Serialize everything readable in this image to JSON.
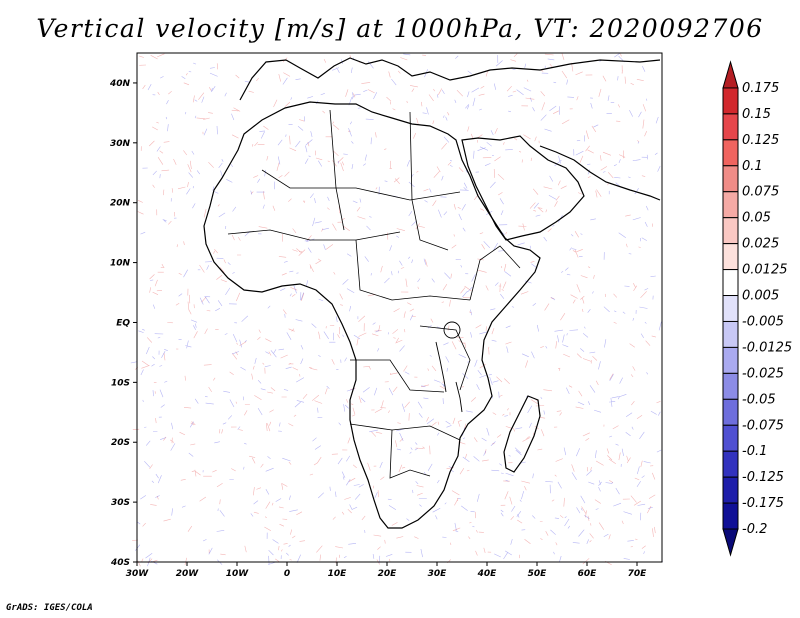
{
  "title": "Vertical velocity [m/s] at 1000hPa, VT: 2020092706",
  "footer": "GrADS: IGES/COLA",
  "map": {
    "lon_range": [
      -30,
      75
    ],
    "lat_range": [
      -40,
      45
    ],
    "lat_ticks": [
      {
        "value": 40,
        "label": "40N"
      },
      {
        "value": 30,
        "label": "30N"
      },
      {
        "value": 20,
        "label": "20N"
      },
      {
        "value": 10,
        "label": "10N"
      },
      {
        "value": 0,
        "label": "EQ"
      },
      {
        "value": -10,
        "label": "10S"
      },
      {
        "value": -20,
        "label": "20S"
      },
      {
        "value": -30,
        "label": "30S"
      },
      {
        "value": -40,
        "label": "40S"
      }
    ],
    "lon_ticks": [
      {
        "value": -30,
        "label": "30W"
      },
      {
        "value": -20,
        "label": "20W"
      },
      {
        "value": -10,
        "label": "10W"
      },
      {
        "value": 0,
        "label": "0"
      },
      {
        "value": 10,
        "label": "10E"
      },
      {
        "value": 20,
        "label": "20E"
      },
      {
        "value": 30,
        "label": "30E"
      },
      {
        "value": 40,
        "label": "40E"
      },
      {
        "value": 50,
        "label": "50E"
      },
      {
        "value": 60,
        "label": "60E"
      },
      {
        "value": 70,
        "label": "70E"
      }
    ]
  },
  "colorbar": {
    "labels": [
      "0.175",
      "0.15",
      "0.125",
      "0.1",
      "0.075",
      "0.05",
      "0.025",
      "0.0125",
      "0.005",
      "-0.005",
      "-0.0125",
      "-0.025",
      "-0.05",
      "-0.075",
      "-0.1",
      "-0.125",
      "-0.175",
      "-0.2"
    ],
    "colors": [
      "#b41e23",
      "#d2282d",
      "#e6464b",
      "#f0645f",
      "#f08c87",
      "#f5aaa5",
      "#fac8c3",
      "#fde1dc",
      "#ffffff",
      "#e1e1fa",
      "#c8c8f5",
      "#aaaaf0",
      "#8c8ce6",
      "#6e6edc",
      "#5050d2",
      "#3232be",
      "#1e1eaa",
      "#101096",
      "#0a0a78"
    ]
  },
  "colors": {
    "frame": "#000000",
    "coast": "#000000",
    "updraft": "#e65a5a",
    "downdraft": "#5a5ae6"
  }
}
